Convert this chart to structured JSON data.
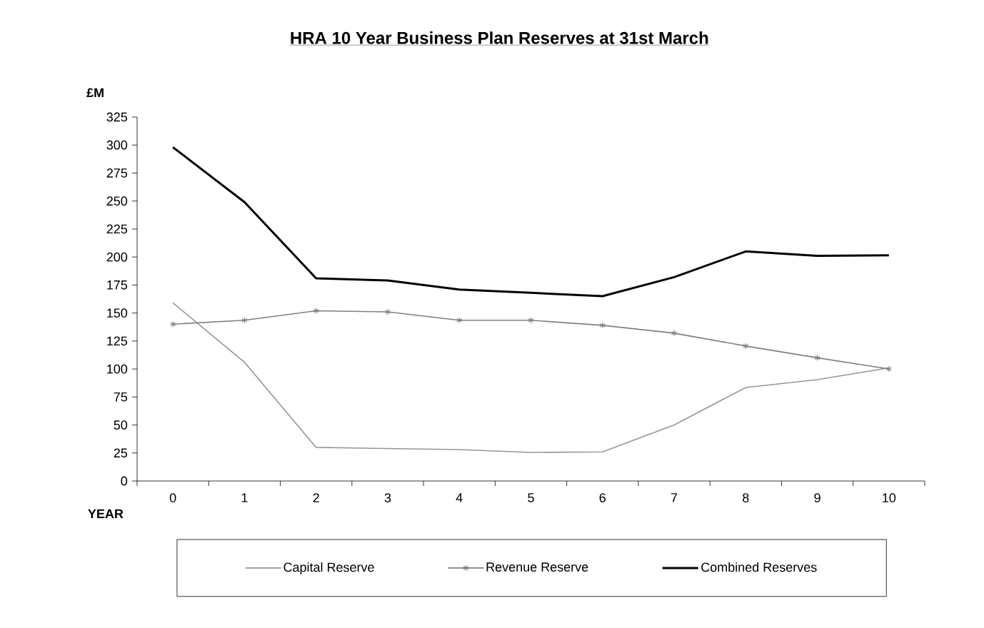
{
  "chart_data": {
    "type": "line",
    "title": "HRA 10 Year Business Plan Reserves at 31st March",
    "xlabel": "YEAR",
    "ylabel": "£M",
    "categories": [
      "0",
      "1",
      "2",
      "3",
      "4",
      "5",
      "6",
      "7",
      "8",
      "9",
      "10"
    ],
    "series": [
      {
        "name": "Capital Reserve",
        "color": "#969696",
        "marker": "none",
        "values": [
          159,
          106,
          30,
          29,
          28,
          25.5,
          26,
          50,
          83.5,
          90.5,
          101
        ]
      },
      {
        "name": "Revenue Reserve",
        "color": "#808080",
        "marker": "cross",
        "values": [
          140,
          143.5,
          152,
          151,
          143.5,
          143.5,
          139,
          132,
          120.5,
          110,
          100
        ]
      },
      {
        "name": "Combined Reserves",
        "color": "#000000",
        "marker": "none",
        "values": [
          298,
          249,
          181,
          179,
          171,
          168,
          165,
          182,
          205,
          201,
          201.5
        ]
      }
    ],
    "ylim": [
      0,
      325
    ],
    "yticks": [
      0,
      25,
      50,
      75,
      100,
      125,
      150,
      175,
      200,
      225,
      250,
      275,
      300,
      325
    ],
    "legend": "bottom"
  }
}
